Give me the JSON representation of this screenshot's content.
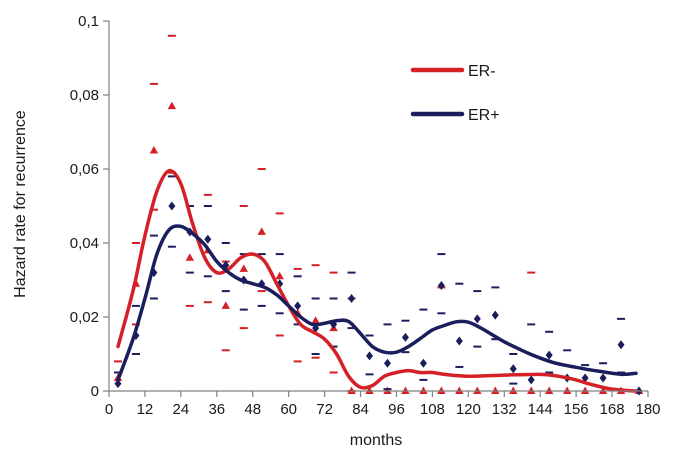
{
  "chart_data": {
    "type": "scatter",
    "xlabel": "months",
    "ylabel": "Hazard rate for recurrence",
    "xlim": [
      0,
      180
    ],
    "ylim": [
      0,
      0.1
    ],
    "x_ticks": [
      0,
      12,
      24,
      36,
      48,
      60,
      72,
      84,
      96,
      108,
      120,
      132,
      144,
      156,
      168,
      180
    ],
    "x_tick_labels": [
      "0",
      "12",
      "24",
      "36",
      "48",
      "60",
      "72",
      "84",
      "96",
      "108",
      "120",
      "132",
      "144",
      "156",
      "168",
      "180"
    ],
    "y_ticks": [
      0,
      0.02,
      0.04,
      0.06,
      0.08,
      0.1
    ],
    "y_tick_labels": [
      "0",
      "0,02",
      "0,04",
      "0,06",
      "0,08",
      "0,1"
    ],
    "grid": false,
    "legend_position": "top-right",
    "series": [
      {
        "name": "ER-",
        "color": "#d42027",
        "marker": "triangle",
        "points": {
          "x": [
            3,
            9,
            15,
            21,
            27,
            33,
            39,
            45,
            51,
            57,
            63,
            69,
            75,
            81,
            87,
            93,
            99,
            105,
            111,
            117,
            123,
            129,
            135,
            141,
            147,
            153,
            159,
            165,
            171,
            177
          ],
          "y": [
            0.0035,
            0.029,
            0.065,
            0.077,
            0.036,
            0.038,
            0.023,
            0.033,
            0.043,
            0.031,
            0.021,
            0.019,
            0.017,
            0.0,
            0.0,
            0.0,
            0.0,
            0.0,
            0.0,
            0.0,
            0.0,
            0.0,
            0.0,
            0.0,
            0.0,
            0.0,
            0.0,
            0.0,
            0.0,
            0.0
          ]
        },
        "ci_upper": {
          "x": [
            3,
            9,
            15,
            21,
            27,
            33,
            39,
            45,
            51,
            57,
            63,
            69,
            75,
            81,
            111,
            141
          ],
          "y": [
            0.008,
            0.04,
            0.083,
            0.096,
            0.05,
            0.053,
            0.035,
            0.05,
            0.06,
            0.048,
            0.033,
            0.034,
            0.032,
            0.025,
            0.028,
            0.032
          ]
        },
        "ci_lower": {
          "x": [
            9,
            15,
            21,
            27,
            33,
            39,
            45,
            51,
            57,
            63,
            69,
            75,
            81
          ],
          "y": [
            0.018,
            0.049,
            0.059,
            0.023,
            0.024,
            0.011,
            0.017,
            0.027,
            0.015,
            0.008,
            0.009,
            0.005,
            0.0
          ]
        },
        "smooth_curve": {
          "x": [
            3,
            8,
            12,
            16,
            20,
            24,
            28,
            32,
            36,
            40,
            44,
            48,
            52,
            56,
            60,
            64,
            68,
            72,
            76,
            80,
            84,
            88,
            92,
            96,
            100,
            104,
            108,
            112,
            120,
            132,
            144,
            150,
            156,
            160,
            168,
            176
          ],
          "y": [
            0.012,
            0.027,
            0.042,
            0.054,
            0.0595,
            0.056,
            0.045,
            0.036,
            0.032,
            0.033,
            0.036,
            0.037,
            0.035,
            0.029,
            0.023,
            0.018,
            0.016,
            0.014,
            0.01,
            0.004,
            0.001,
            0.0015,
            0.004,
            0.005,
            0.0055,
            0.005,
            0.005,
            0.0045,
            0.004,
            0.0043,
            0.0045,
            0.004,
            0.003,
            0.002,
            0.0005,
            0.0
          ]
        }
      },
      {
        "name": "ER+",
        "color": "#1b1e5c",
        "marker": "diamond",
        "points": {
          "x": [
            3,
            9,
            15,
            21,
            27,
            33,
            39,
            45,
            51,
            57,
            63,
            69,
            75,
            81,
            87,
            93,
            99,
            105,
            111,
            117,
            123,
            129,
            135,
            141,
            147,
            153,
            159,
            165,
            171,
            177
          ],
          "y": [
            0.002,
            0.015,
            0.032,
            0.05,
            0.043,
            0.041,
            0.034,
            0.03,
            0.029,
            0.029,
            0.023,
            0.017,
            0.018,
            0.025,
            0.0095,
            0.0075,
            0.0145,
            0.0075,
            0.0285,
            0.0135,
            0.0195,
            0.0205,
            0.006,
            0.003,
            0.0097,
            0.0035,
            0.0035,
            0.0035,
            0.0125,
            0.0
          ]
        },
        "ci_upper": {
          "x": [
            3,
            9,
            15,
            21,
            27,
            33,
            39,
            45,
            51,
            57,
            63,
            69,
            75,
            81,
            87,
            93,
            99,
            105,
            111,
            117,
            123,
            129,
            135,
            141,
            147,
            153,
            159,
            165,
            171
          ],
          "y": [
            0.005,
            0.023,
            0.042,
            0.058,
            0.05,
            0.05,
            0.04,
            0.037,
            0.037,
            0.037,
            0.031,
            0.025,
            0.025,
            0.032,
            0.015,
            0.018,
            0.019,
            0.022,
            0.037,
            0.029,
            0.027,
            0.028,
            0.01,
            0.018,
            0.016,
            0.011,
            0.007,
            0.0075,
            0.0195
          ]
        },
        "ci_lower": {
          "x": [
            9,
            15,
            21,
            27,
            33,
            39,
            45,
            51,
            57,
            63,
            69,
            75,
            81,
            87,
            93,
            99,
            105,
            111,
            117,
            123,
            129,
            135,
            147,
            171
          ],
          "y": [
            0.01,
            0.025,
            0.039,
            0.032,
            0.031,
            0.027,
            0.022,
            0.023,
            0.021,
            0.018,
            0.01,
            0.012,
            0.017,
            0.0045,
            0.0005,
            0.0105,
            0.003,
            0.021,
            0.0065,
            0.012,
            0.014,
            0.002,
            0.005,
            0.005
          ]
        },
        "smooth_curve": {
          "x": [
            3,
            8,
            12,
            16,
            20,
            24,
            28,
            32,
            36,
            40,
            44,
            48,
            52,
            56,
            60,
            64,
            68,
            72,
            76,
            80,
            84,
            88,
            92,
            96,
            100,
            104,
            108,
            112,
            116,
            120,
            124,
            128,
            132,
            136,
            140,
            144,
            148,
            152,
            156,
            160,
            164,
            168,
            172,
            176
          ],
          "y": [
            0.003,
            0.014,
            0.025,
            0.037,
            0.0435,
            0.0445,
            0.0425,
            0.0395,
            0.035,
            0.032,
            0.03,
            0.029,
            0.028,
            0.026,
            0.023,
            0.02,
            0.018,
            0.0183,
            0.019,
            0.0188,
            0.0155,
            0.012,
            0.0105,
            0.0105,
            0.012,
            0.0142,
            0.0165,
            0.0177,
            0.0187,
            0.0186,
            0.0171,
            0.0152,
            0.0133,
            0.0117,
            0.0102,
            0.0089,
            0.0078,
            0.007,
            0.0064,
            0.0058,
            0.0053,
            0.0048,
            0.0045,
            0.0048
          ]
        }
      }
    ]
  }
}
